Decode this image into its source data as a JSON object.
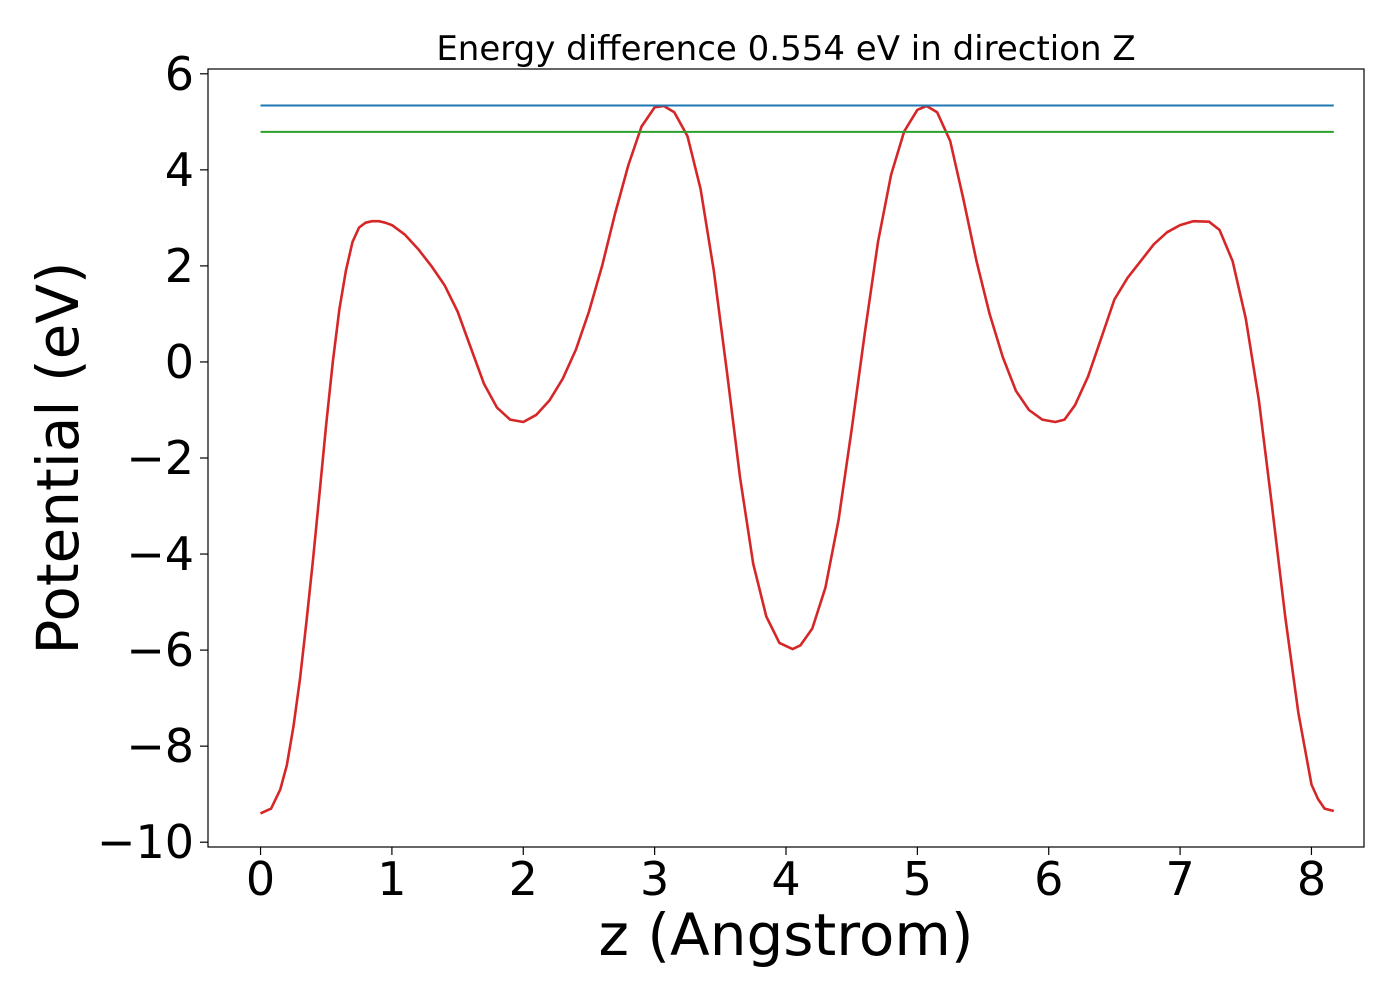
{
  "chart_data": {
    "type": "line",
    "title": "Energy difference 0.554 eV in direction Z",
    "xlabel": "z (Angstrom)",
    "ylabel": "Potential (eV)",
    "xlim": [
      -0.4,
      8.4
    ],
    "ylim": [
      -10.1,
      6.1
    ],
    "xticks": [
      0,
      1,
      2,
      3,
      4,
      5,
      6,
      7,
      8
    ],
    "yticks": [
      -10,
      -8,
      -6,
      -4,
      -2,
      0,
      2,
      4,
      6
    ],
    "xtick_labels": [
      "0",
      "1",
      "2",
      "3",
      "4",
      "5",
      "6",
      "7",
      "8"
    ],
    "ytick_labels": [
      "−10",
      "−8",
      "−6",
      "−4",
      "−2",
      "0",
      "2",
      "4",
      "6"
    ],
    "grid": false,
    "series": [
      {
        "color": "#d62728",
        "x": [
          0.0,
          0.08,
          0.15,
          0.2,
          0.25,
          0.3,
          0.35,
          0.4,
          0.45,
          0.5,
          0.55,
          0.6,
          0.65,
          0.7,
          0.75,
          0.8,
          0.85,
          0.9,
          0.95,
          1.0,
          1.1,
          1.2,
          1.3,
          1.4,
          1.5,
          1.6,
          1.7,
          1.8,
          1.9,
          2.0,
          2.1,
          2.2,
          2.3,
          2.4,
          2.5,
          2.6,
          2.7,
          2.8,
          2.9,
          3.0,
          3.07,
          3.15,
          3.25,
          3.35,
          3.45,
          3.55,
          3.65,
          3.75,
          3.85,
          3.95,
          4.05,
          4.11,
          4.2,
          4.3,
          4.4,
          4.5,
          4.6,
          4.7,
          4.8,
          4.9,
          5.0,
          5.07,
          5.15,
          5.25,
          5.35,
          5.45,
          5.55,
          5.65,
          5.75,
          5.85,
          5.95,
          6.05,
          6.12,
          6.2,
          6.3,
          6.4,
          6.5,
          6.6,
          6.7,
          6.8,
          6.9,
          7.0,
          7.1,
          7.22,
          7.3,
          7.4,
          7.5,
          7.6,
          7.7,
          7.8,
          7.9,
          8.0,
          8.05,
          8.1,
          8.17
        ],
        "y": [
          -9.4,
          -9.3,
          -8.9,
          -8.4,
          -7.6,
          -6.6,
          -5.4,
          -4.1,
          -2.7,
          -1.3,
          0.0,
          1.1,
          1.9,
          2.5,
          2.8,
          2.9,
          2.93,
          2.93,
          2.9,
          2.85,
          2.65,
          2.35,
          2.0,
          1.6,
          1.05,
          0.3,
          -0.45,
          -0.95,
          -1.2,
          -1.25,
          -1.1,
          -0.8,
          -0.35,
          0.25,
          1.05,
          2.0,
          3.1,
          4.1,
          4.9,
          5.3,
          5.33,
          5.2,
          4.7,
          3.6,
          1.9,
          -0.2,
          -2.4,
          -4.2,
          -5.3,
          -5.85,
          -5.98,
          -5.9,
          -5.55,
          -4.7,
          -3.3,
          -1.4,
          0.6,
          2.5,
          3.9,
          4.8,
          5.25,
          5.33,
          5.2,
          4.6,
          3.4,
          2.1,
          1.0,
          0.1,
          -0.6,
          -1.0,
          -1.2,
          -1.25,
          -1.2,
          -0.9,
          -0.3,
          0.5,
          1.3,
          1.75,
          2.1,
          2.45,
          2.7,
          2.85,
          2.93,
          2.92,
          2.75,
          2.1,
          0.9,
          -0.8,
          -3.0,
          -5.3,
          -7.3,
          -8.8,
          -9.1,
          -9.3,
          -9.35
        ]
      },
      {
        "color": "#1f77b4",
        "x": [
          0.0,
          8.17
        ],
        "y": [
          5.34,
          5.34
        ]
      },
      {
        "color": "#2ca02c",
        "x": [
          0.0,
          8.17
        ],
        "y": [
          4.79,
          4.79
        ]
      }
    ]
  }
}
